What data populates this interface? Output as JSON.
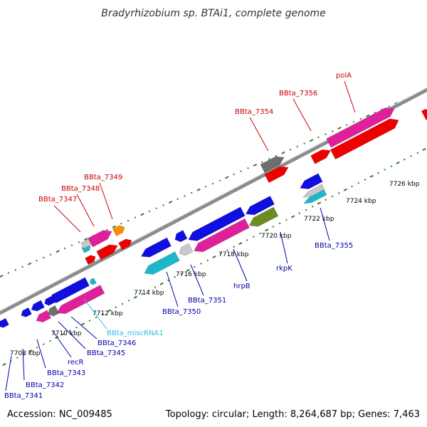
{
  "header": {
    "title": "Bradyrhizobium sp. BTAi1, complete genome"
  },
  "footer": {
    "accession": "Accession: NC_009485",
    "topology": "Topology: circular; Length: 8,264,687 bp; Genes: 7,463"
  },
  "colors": {
    "backbone": "#8c8c8c",
    "scale_dot": "#2e7d2e",
    "label_plus": "#cc0000",
    "label_minus": "#0000aa",
    "label_ncrna": "#33bbdd",
    "blue": "#0f0fe0",
    "magenta": "#e0209a",
    "red": "#ee0000",
    "cyan": "#1ab8c8",
    "gray": "#6e6e6e",
    "lightgray": "#c8c8c8",
    "olive": "#6a8c22",
    "orange": "#ff8c00"
  },
  "scale": {
    "ticks": [
      "7708 kbp",
      "7710 kbp",
      "7712 kbp",
      "7714 kbp",
      "7716 kbp",
      "7718 kbp",
      "7720 kbp",
      "7722 kbp",
      "7724 kbp",
      "7726 kbp"
    ]
  },
  "labels": {
    "plus": [
      "BBta_7347",
      "BBta_7348",
      "BBta_7349",
      "BBta_7354",
      "BBta_7356",
      "polA"
    ],
    "minus": [
      "BBta_7341",
      "BBta_7342",
      "BBta_7343",
      "recR",
      "BBta_7345",
      "BBta_7346",
      "BBta_miscRNA1",
      "BBta_7350",
      "BBta_7351",
      "hrpB",
      "rkpK",
      "BBta_7355"
    ]
  },
  "features": [
    {
      "color": "blue",
      "strand": "minus",
      "row": 1
    },
    {
      "color": "blue",
      "strand": "minus",
      "row": 1
    },
    {
      "color": "blue",
      "strand": "minus",
      "row": 1
    },
    {
      "color": "blue",
      "strand": "minus",
      "row": 1
    },
    {
      "color": "blue",
      "strand": "minus",
      "row": 1
    },
    {
      "color": "magenta",
      "strand": "minus",
      "row": 2
    },
    {
      "color": "gray",
      "strand": "minus",
      "row": 2
    },
    {
      "color": "magenta",
      "strand": "minus",
      "row": 2
    },
    {
      "color": "cyan",
      "strand": "minus",
      "row": 1
    },
    {
      "color": "blue",
      "strand": "minus",
      "row": 1
    },
    {
      "color": "cyan",
      "strand": "minus",
      "row": 2
    },
    {
      "color": "blue",
      "strand": "minus",
      "row": 1
    },
    {
      "color": "lightgray",
      "strand": "minus",
      "row": 2
    },
    {
      "color": "blue",
      "strand": "minus",
      "row": 1
    },
    {
      "color": "magenta",
      "strand": "minus",
      "row": 2
    },
    {
      "color": "blue",
      "strand": "minus",
      "row": 1
    },
    {
      "color": "olive",
      "strand": "minus",
      "row": 2
    },
    {
      "color": "blue",
      "strand": "minus",
      "row": 1
    },
    {
      "color": "lightgray",
      "strand": "minus",
      "row": 2
    },
    {
      "color": "cyan",
      "strand": "minus",
      "row": 3
    },
    {
      "color": "red",
      "strand": "plus",
      "row": 1
    },
    {
      "color": "red",
      "strand": "plus",
      "row": 1
    },
    {
      "color": "red",
      "strand": "plus",
      "row": 2
    },
    {
      "color": "cyan",
      "strand": "plus",
      "row": 2
    },
    {
      "color": "lightgray",
      "strand": "plus",
      "row": 3
    },
    {
      "color": "magenta",
      "strand": "plus",
      "row": 3
    },
    {
      "color": "orange",
      "strand": "plus",
      "row": 3
    },
    {
      "color": "red",
      "strand": "plus",
      "row": 1
    },
    {
      "color": "gray",
      "strand": "plus",
      "row": 2
    },
    {
      "color": "red",
      "strand": "plus",
      "row": 1
    },
    {
      "color": "red",
      "strand": "plus",
      "row": 1
    },
    {
      "color": "magenta",
      "strand": "plus",
      "row": 2
    },
    {
      "color": "red",
      "strand": "plus",
      "row": 1
    }
  ]
}
